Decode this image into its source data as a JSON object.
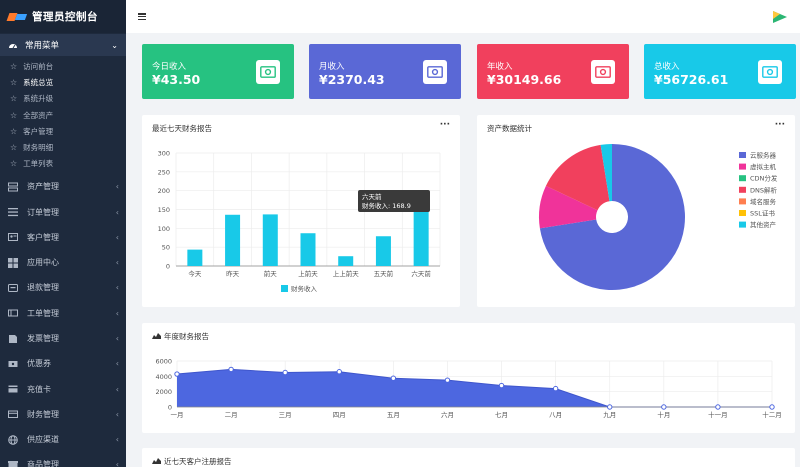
{
  "app": {
    "title": "管理员控制台"
  },
  "sidebar": {
    "open_menu": "常用菜单",
    "sub_items": [
      "访问前台",
      "系统总览",
      "系统升级",
      "全部资产",
      "客户管理",
      "财务明细",
      "工单列表"
    ],
    "active_sub": "系统总览",
    "menu_items": [
      {
        "label": "资产管理",
        "icon": "server-icon"
      },
      {
        "label": "订单管理",
        "icon": "list-icon"
      },
      {
        "label": "客户管理",
        "icon": "id-card-icon"
      },
      {
        "label": "应用中心",
        "icon": "windows-icon"
      },
      {
        "label": "退款管理",
        "icon": "refund-icon"
      },
      {
        "label": "工单管理",
        "icon": "ticket-icon"
      },
      {
        "label": "发票管理",
        "icon": "invoice-icon"
      },
      {
        "label": "优惠券",
        "icon": "coupon-icon"
      },
      {
        "label": "充值卡",
        "icon": "card-icon"
      },
      {
        "label": "财务管理",
        "icon": "wallet-icon"
      },
      {
        "label": "供应渠道",
        "icon": "globe-icon"
      },
      {
        "label": "商品管理",
        "icon": "box-icon"
      }
    ]
  },
  "stats": [
    {
      "label": "今日收入",
      "value": "¥43.50",
      "color": "#26c281"
    },
    {
      "label": "月收入",
      "value": "¥2370.43",
      "color": "#5a68d6"
    },
    {
      "label": "年收入",
      "value": "¥30149.66",
      "color": "#f1405d"
    },
    {
      "label": "总收入",
      "value": "¥56726.61",
      "color": "#18c9e8"
    }
  ],
  "finance_panel": {
    "title": "最近七天财务报告",
    "tooltip_title": "六天前",
    "tooltip_value": "财务收入: 168.9"
  },
  "assets_panel": {
    "title": "资产数据统计"
  },
  "year_panel": {
    "title": "年度财务报告"
  },
  "register_panel": {
    "title": "近七天客户注册报告"
  },
  "chart_data": [
    {
      "type": "bar",
      "title": "最近七天财务报告",
      "categories": [
        "今天",
        "昨天",
        "前天",
        "上前天",
        "上上前天",
        "五天前",
        "六天前"
      ],
      "series": [
        {
          "name": "财务收入",
          "values": [
            43.5,
            136,
            137,
            87,
            26,
            79,
            168.9
          ]
        }
      ],
      "ylim": [
        0,
        300
      ],
      "yticks": [
        0,
        50,
        100,
        150,
        200,
        250,
        300
      ],
      "color": "#18c9e8",
      "grid": true,
      "legend": "bottom"
    },
    {
      "type": "pie",
      "title": "资产数据统计",
      "labels": [
        "云服务器",
        "虚拟主机",
        "CDN分发",
        "DNS解析",
        "域名服务",
        "SSL证书",
        "其他资产"
      ],
      "values": [
        72.5,
        9.5,
        0,
        15.5,
        0,
        0,
        2.5
      ],
      "colors": [
        "#5a68d6",
        "#f0339a",
        "#26c281",
        "#f1405d",
        "#ff7f50",
        "#ffc107",
        "#18c9e8"
      ],
      "legend": "right"
    },
    {
      "type": "area",
      "title": "年度财务报告",
      "categories": [
        "一月",
        "二月",
        "三月",
        "四月",
        "五月",
        "六月",
        "七月",
        "八月",
        "九月",
        "十月",
        "十一月",
        "十二月"
      ],
      "series": [
        {
          "name": "财务收入",
          "values": [
            4300,
            4900,
            4500,
            4600,
            3750,
            3500,
            2800,
            2400,
            0,
            0,
            0,
            0
          ]
        }
      ],
      "ylim": [
        0,
        6000
      ],
      "yticks": [
        0,
        2000,
        4000,
        6000
      ],
      "color": "#4d67e0",
      "grid": true
    }
  ]
}
